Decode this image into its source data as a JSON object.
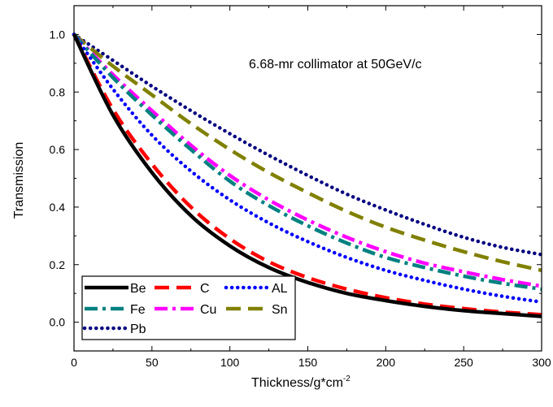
{
  "chart_data": {
    "type": "line",
    "title": "",
    "annotation": "6.68-mr collimator at 50GeV/c",
    "xlabel": "Thickness/g*cm",
    "xlabel_superscript": "-2",
    "ylabel": "Transmission",
    "xlim": [
      0,
      300
    ],
    "ylim": [
      -0.1,
      1.1
    ],
    "xticks": [
      0,
      50,
      100,
      150,
      200,
      250,
      300
    ],
    "yticks": [
      0.0,
      0.2,
      0.4,
      0.6,
      0.8,
      1.0
    ],
    "ytick_labels": [
      "0.0",
      "0.2",
      "0.4",
      "0.6",
      "0.8",
      "1.0"
    ],
    "grid": false,
    "legend_position": "bottom-left",
    "x": [
      0,
      25,
      50,
      75,
      100,
      125,
      150,
      175,
      200,
      225,
      250,
      275,
      300
    ],
    "series": [
      {
        "name": "Be",
        "color": "#000000",
        "style": "solid",
        "values": [
          1.0,
          0.72,
          0.52,
          0.37,
          0.265,
          0.19,
          0.138,
          0.1,
          0.075,
          0.055,
          0.04,
          0.03,
          0.02
        ]
      },
      {
        "name": "C",
        "color": "#ff0000",
        "style": "dash",
        "values": [
          1.0,
          0.74,
          0.55,
          0.4,
          0.29,
          0.21,
          0.155,
          0.115,
          0.085,
          0.063,
          0.047,
          0.035,
          0.026
        ]
      },
      {
        "name": "AL",
        "color": "#0000ff",
        "style": "dot",
        "values": [
          1.0,
          0.81,
          0.65,
          0.525,
          0.425,
          0.345,
          0.28,
          0.225,
          0.18,
          0.145,
          0.115,
          0.09,
          0.07
        ]
      },
      {
        "name": "Fe",
        "color": "#008080",
        "style": "dashdot",
        "values": [
          1.0,
          0.85,
          0.72,
          0.6,
          0.49,
          0.405,
          0.335,
          0.275,
          0.225,
          0.19,
          0.16,
          0.135,
          0.115
        ]
      },
      {
        "name": "Cu",
        "color": "#ff00ff",
        "style": "dashdot",
        "values": [
          1.0,
          0.86,
          0.735,
          0.615,
          0.51,
          0.425,
          0.355,
          0.295,
          0.245,
          0.205,
          0.175,
          0.148,
          0.125
        ]
      },
      {
        "name": "Sn",
        "color": "#808000",
        "style": "dash",
        "values": [
          1.0,
          0.89,
          0.79,
          0.69,
          0.6,
          0.52,
          0.45,
          0.385,
          0.33,
          0.285,
          0.245,
          0.21,
          0.18
        ]
      },
      {
        "name": "Pb",
        "color": "#000080",
        "style": "dot",
        "values": [
          1.0,
          0.91,
          0.82,
          0.735,
          0.655,
          0.58,
          0.51,
          0.445,
          0.39,
          0.34,
          0.295,
          0.26,
          0.235
        ]
      }
    ]
  }
}
